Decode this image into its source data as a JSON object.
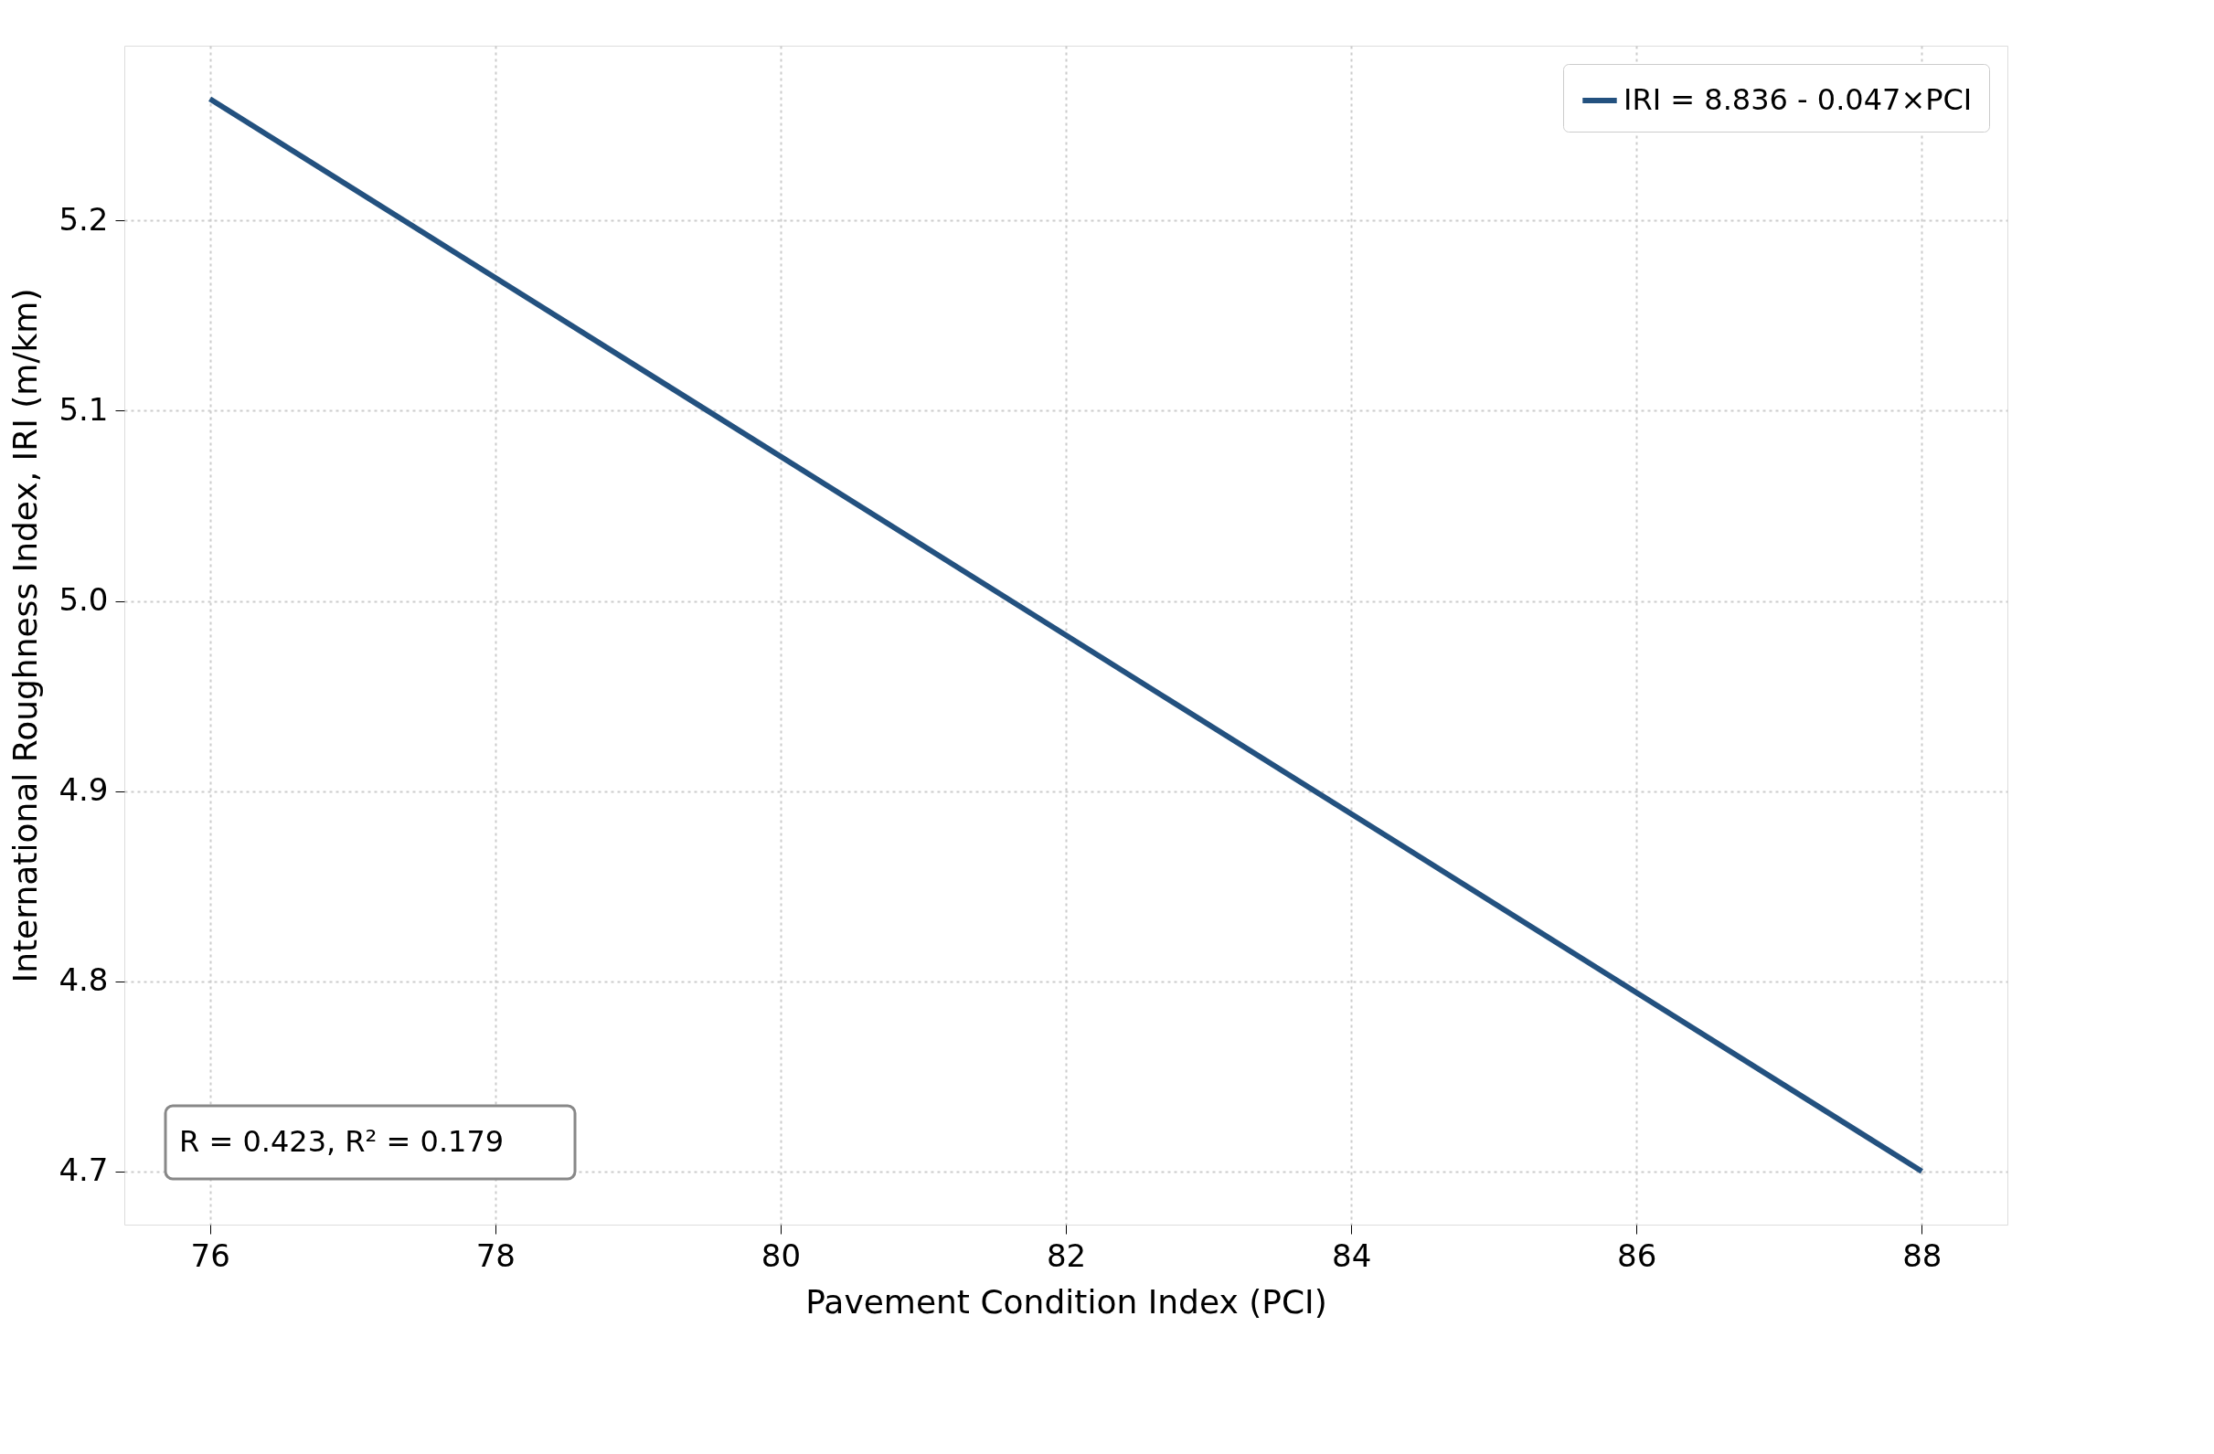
{
  "chart_data": {
    "type": "line",
    "xlabel": "Pavement Condition Index (PCI)",
    "ylabel": "International Roughness Index, IRI (m/km)",
    "x": [
      76,
      88
    ],
    "series": [
      {
        "name": "IRI = 8.836 - 0.047×PCI",
        "color": "#23517f",
        "values": [
          5.264,
          4.7
        ]
      }
    ],
    "xlim": [
      75.4,
      88.6
    ],
    "xticks": [
      76,
      78,
      80,
      82,
      84,
      86,
      88
    ],
    "ylim": [
      4.672,
      5.292
    ],
    "yticks": [
      4.7,
      4.8,
      4.9,
      {
        "value": 5,
        "label": "5.0"
      },
      5.1,
      5.2
    ],
    "grid": true,
    "legend": "top right",
    "line_style": "solid",
    "marker": "none",
    "annotations": [
      "R = 0.423,  R² = 0.179"
    ]
  }
}
